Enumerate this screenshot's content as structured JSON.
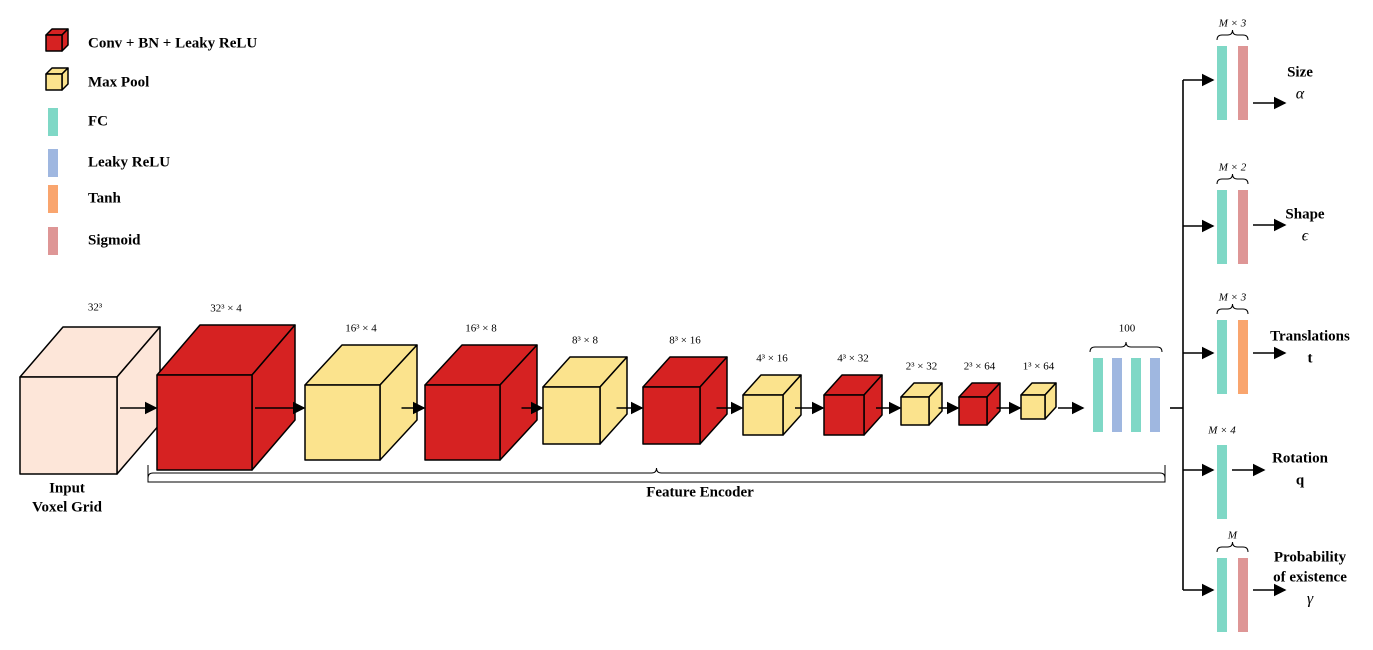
{
  "legend": [
    {
      "label": "Conv + BN + Leaky ReLU"
    },
    {
      "label": "Max Pool"
    },
    {
      "label": "FC"
    },
    {
      "label": "Leaky ReLU"
    },
    {
      "label": "Tanh"
    },
    {
      "label": "Sigmoid"
    }
  ],
  "encoder": {
    "title": "Feature Encoder",
    "input": {
      "dim": "32³",
      "label": [
        "Input",
        "Voxel Grid"
      ]
    },
    "layers": [
      "32³ × 4",
      "16³ × 4",
      "16³ × 8",
      "8³ × 8",
      "8³ × 16",
      "4³ × 16",
      "4³ × 32",
      "2³ × 32",
      "2³ × 64",
      "1³ × 64"
    ],
    "fc_dim": "100"
  },
  "heads": [
    {
      "dim": "M × 3",
      "name": [
        "Size"
      ],
      "symbol": "α"
    },
    {
      "dim": "M × 2",
      "name": [
        "Shape"
      ],
      "symbol": "ϵ"
    },
    {
      "dim": "M × 3",
      "name": [
        "Translations"
      ],
      "symbol": "t"
    },
    {
      "dim": "M × 4",
      "name": [
        "Rotation"
      ],
      "symbol": "q"
    },
    {
      "dim": "M",
      "name": [
        "Probability",
        "of existence"
      ],
      "symbol": "γ"
    }
  ]
}
